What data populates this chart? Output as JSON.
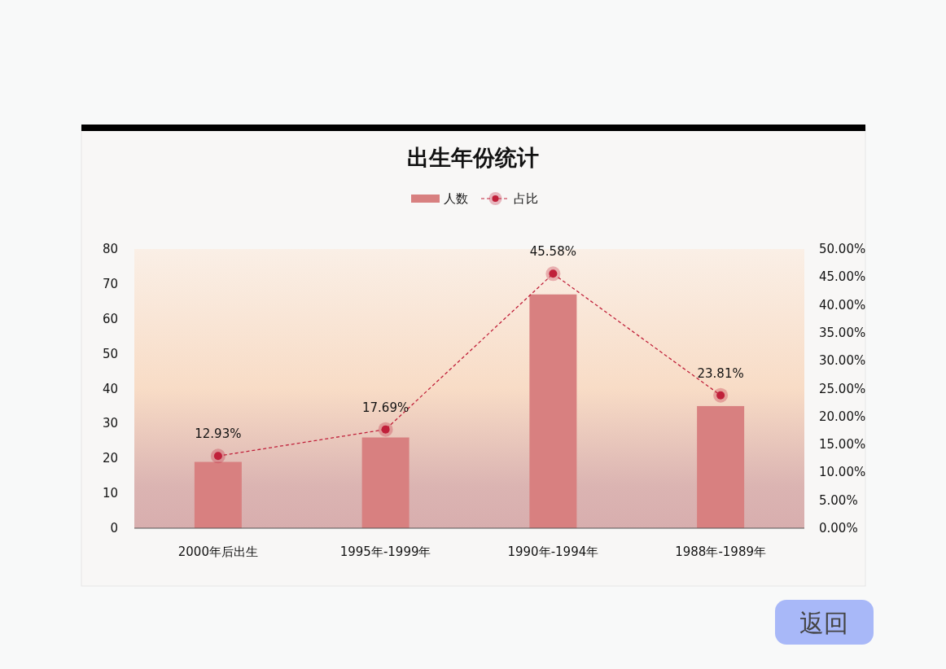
{
  "chart_data": {
    "type": "bar",
    "title": "出生年份统计",
    "categories": [
      "2000年后出生",
      "1995年-1999年",
      "1990年-1994年",
      "1988年-1989年"
    ],
    "series": [
      {
        "name": "人数",
        "color": "#d88080",
        "values": [
          19,
          26,
          67,
          35
        ]
      },
      {
        "name": "占比",
        "type": "line",
        "axis": "y2",
        "color": "#c0203a",
        "marker": "circle",
        "line_style": "dashed",
        "values": [
          12.93,
          17.69,
          45.58,
          23.81
        ],
        "value_labels": [
          "12.93%",
          "17.69%",
          "45.58%",
          "23.81%"
        ]
      }
    ],
    "ylim": [
      0,
      80
    ],
    "yticks": [
      0,
      10,
      20,
      30,
      40,
      50,
      60,
      70,
      80
    ],
    "y2lim": [
      0,
      50
    ],
    "y2ticks": [
      {
        "value": 0,
        "label": "0.00%"
      },
      {
        "value": 5,
        "label": "5.00%"
      },
      {
        "value": 10,
        "label": "10.00%"
      },
      {
        "value": 15,
        "label": "15.00%"
      },
      {
        "value": 20,
        "label": "20.00%"
      },
      {
        "value": 25,
        "label": "25.00%"
      },
      {
        "value": 30,
        "label": "30.00%"
      },
      {
        "value": 35,
        "label": "35.00%"
      },
      {
        "value": 40,
        "label": "40.00%"
      },
      {
        "value": 45,
        "label": "45.00%"
      },
      {
        "value": 50,
        "label": "50.00%"
      }
    ],
    "legend": "top",
    "grid": false,
    "annotations": [
      "返回"
    ]
  }
}
